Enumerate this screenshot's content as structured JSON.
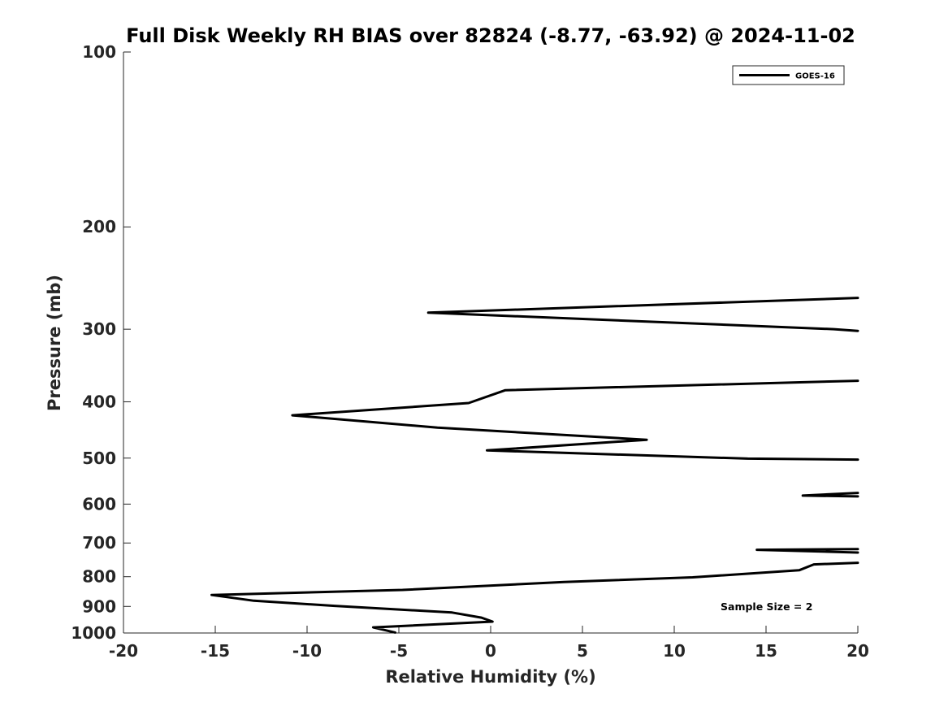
{
  "chart_data": {
    "type": "line",
    "title": "Full Disk Weekly RH BIAS over 82824 (-8.77, -63.92) @ 2024-11-02",
    "xlabel": "Relative Humidity (%)",
    "ylabel": "Pressure (mb)",
    "xlim": [
      -20,
      20
    ],
    "ylim": [
      100,
      1000
    ],
    "y_scale": "log",
    "y_reversed": true,
    "x_ticks": [
      -20,
      -15,
      -10,
      -5,
      0,
      5,
      10,
      15,
      20
    ],
    "x_tick_labels": [
      "-20",
      "-15",
      "-10",
      "-5",
      "0",
      "5",
      "10",
      "15",
      "20"
    ],
    "y_ticks": [
      100,
      200,
      300,
      400,
      500,
      600,
      700,
      800,
      900,
      1000
    ],
    "y_tick_labels": [
      "100",
      "200",
      "300",
      "400",
      "500",
      "600",
      "700",
      "800",
      "900",
      "1000"
    ],
    "grid": false,
    "legend_position": "top-right",
    "annotation": "Sample Size = 2",
    "series": [
      {
        "name": "GOES-16",
        "color": "#000000",
        "segments": [
          [
            {
              "x": 20,
              "y": 265
            },
            {
              "x": -3.4,
              "y": 281
            },
            {
              "x": 18.7,
              "y": 300
            },
            {
              "x": 20,
              "y": 302
            }
          ],
          [
            {
              "x": 20,
              "y": 368
            },
            {
              "x": 0.8,
              "y": 382
            },
            {
              "x": -1.2,
              "y": 402
            },
            {
              "x": -10.8,
              "y": 422
            },
            {
              "x": -2.9,
              "y": 443
            },
            {
              "x": 8.5,
              "y": 465
            },
            {
              "x": -0.2,
              "y": 485
            },
            {
              "x": 14.0,
              "y": 501
            },
            {
              "x": 20,
              "y": 503
            }
          ],
          [
            {
              "x": 20,
              "y": 574
            },
            {
              "x": 17.0,
              "y": 580
            },
            {
              "x": 20,
              "y": 582
            }
          ],
          [
            {
              "x": 20,
              "y": 717
            },
            {
              "x": 14.5,
              "y": 719
            },
            {
              "x": 20,
              "y": 727
            }
          ],
          [
            {
              "x": 20,
              "y": 757
            },
            {
              "x": 17.6,
              "y": 762
            },
            {
              "x": 16.8,
              "y": 780
            },
            {
              "x": 11.0,
              "y": 802
            },
            {
              "x": 4.0,
              "y": 817
            },
            {
              "x": -4.8,
              "y": 843
            },
            {
              "x": -15.2,
              "y": 860
            },
            {
              "x": -12.9,
              "y": 880
            },
            {
              "x": -8.5,
              "y": 898
            },
            {
              "x": -2.1,
              "y": 922
            },
            {
              "x": -0.5,
              "y": 941
            },
            {
              "x": 0.1,
              "y": 956
            },
            {
              "x": -6.4,
              "y": 978
            },
            {
              "x": -5.2,
              "y": 998
            }
          ]
        ]
      }
    ]
  }
}
